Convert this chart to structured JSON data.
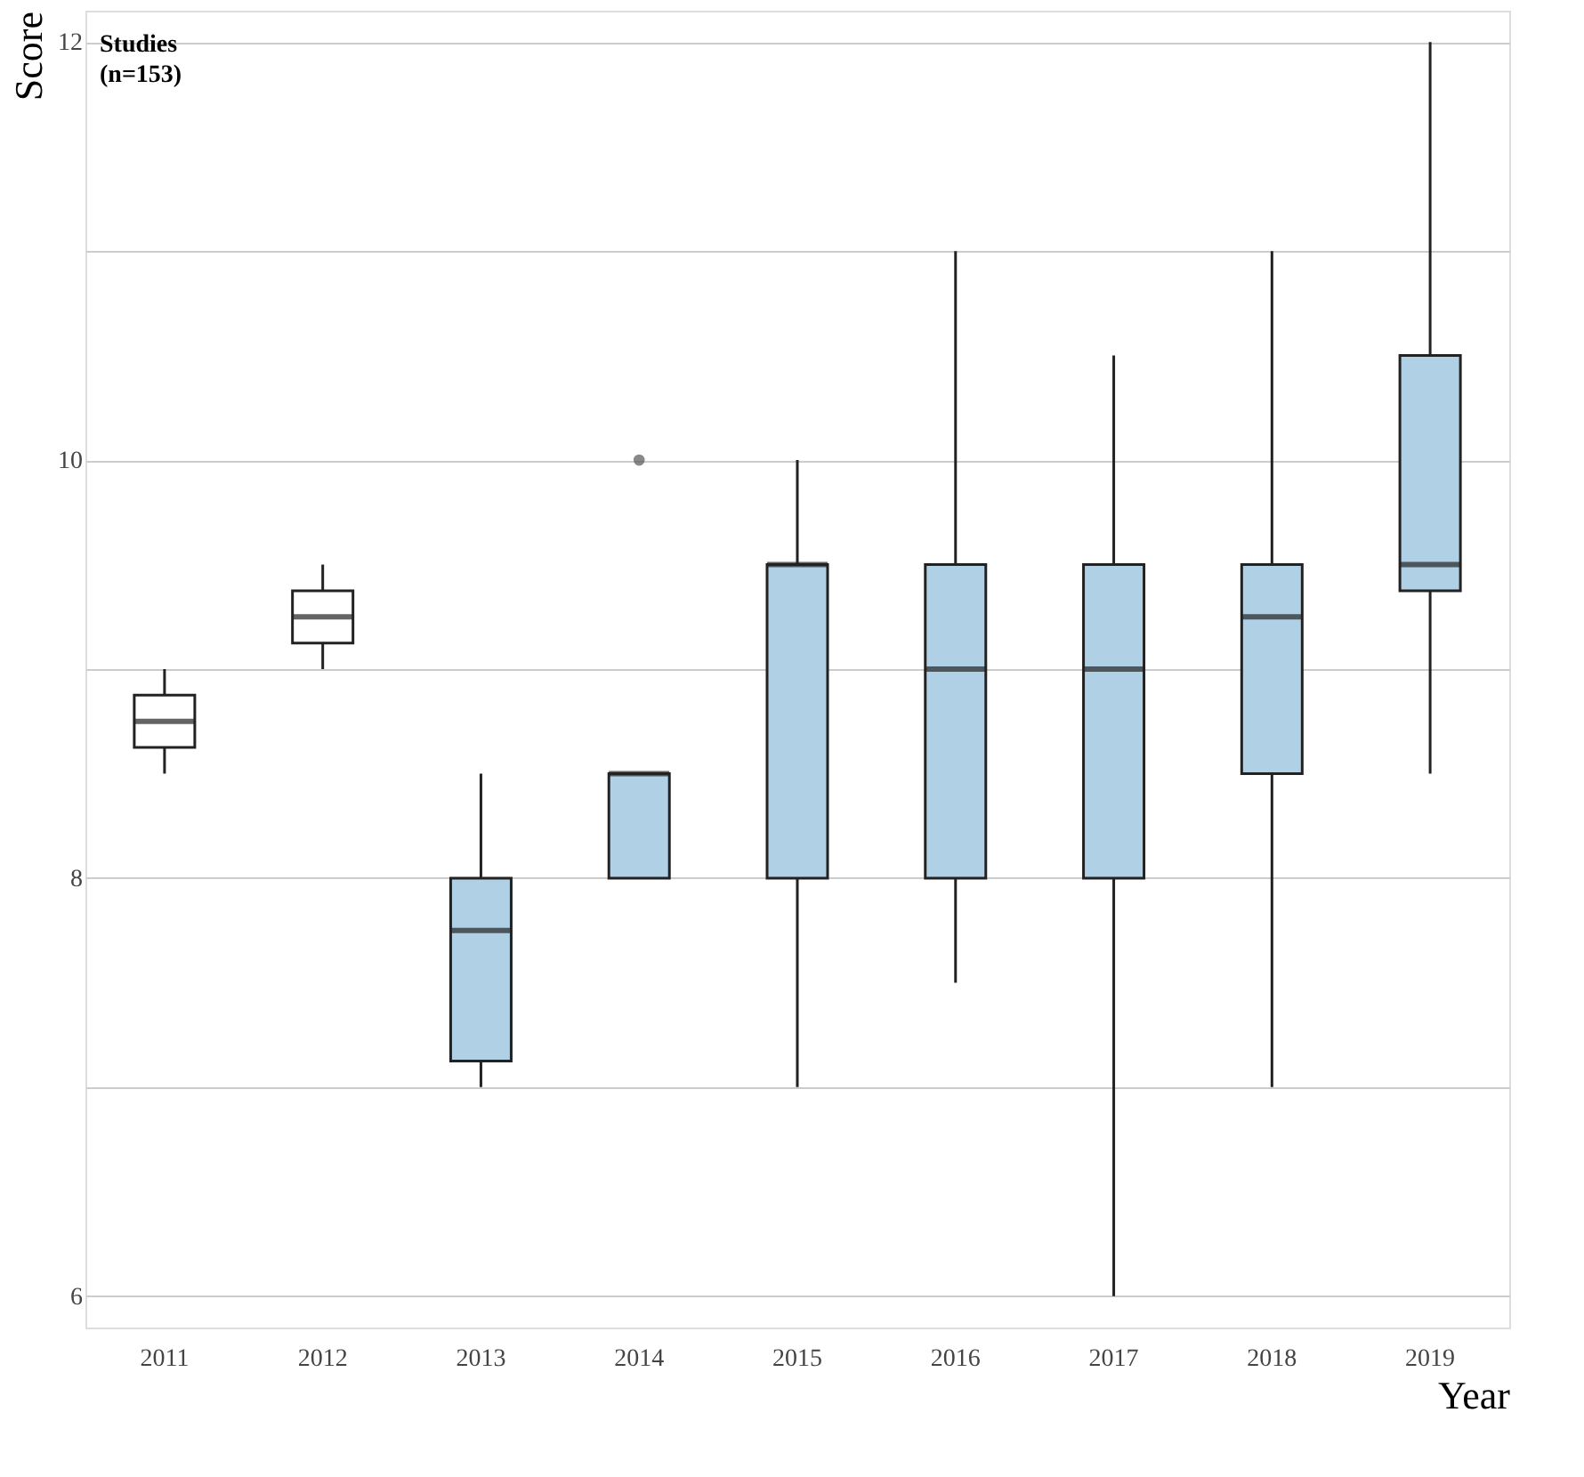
{
  "chart_data": {
    "type": "box",
    "xlabel": "Year",
    "ylabel": "Score",
    "categories": [
      "2011",
      "2012",
      "2013",
      "2014",
      "2015",
      "2016",
      "2017",
      "2018",
      "2019"
    ],
    "boxes": [
      {
        "low": 8.5,
        "q1": 8.625,
        "median": 8.75,
        "q3": 8.875,
        "high": 9.0
      },
      {
        "low": 9.0,
        "q1": 9.125,
        "median": 9.25,
        "q3": 9.375,
        "high": 9.5
      },
      {
        "low": 7.0,
        "q1": 7.125,
        "median": 7.75,
        "q3": 8.0,
        "high": 8.5
      },
      {
        "low": 8.0,
        "q1": 8.0,
        "median": 8.5,
        "q3": 8.5,
        "high": 8.5,
        "outliers": [
          10.0
        ]
      },
      {
        "low": 7.0,
        "q1": 8.0,
        "median": 9.5,
        "q3": 9.5,
        "high": 10.0
      },
      {
        "low": 7.5,
        "q1": 8.0,
        "median": 9.0,
        "q3": 9.5,
        "high": 11.0
      },
      {
        "low": 6.0,
        "q1": 8.0,
        "median": 9.0,
        "q3": 9.5,
        "high": 10.5
      },
      {
        "low": 7.0,
        "q1": 8.5,
        "median": 9.25,
        "q3": 9.5,
        "high": 11.0
      },
      {
        "low": 8.5,
        "q1": 9.375,
        "median": 9.5,
        "q3": 10.5,
        "high": 12.0
      }
    ],
    "colors": [
      "#ffffff",
      "#ffffff",
      "#afd0e5",
      "#afd0e5",
      "#afd0e5",
      "#afd0e5",
      "#afd0e5",
      "#afd0e5",
      "#afd0e5"
    ],
    "ylim": [
      5.85,
      12.15
    ],
    "yticks": [
      6,
      {
        "value": 7,
        "label": null
      },
      8,
      {
        "value": 9,
        "label": null
      },
      10,
      {
        "value": 11,
        "label": null
      },
      12
    ],
    "grid": "y",
    "annotations": [
      "Studies\n(n=153)"
    ]
  }
}
